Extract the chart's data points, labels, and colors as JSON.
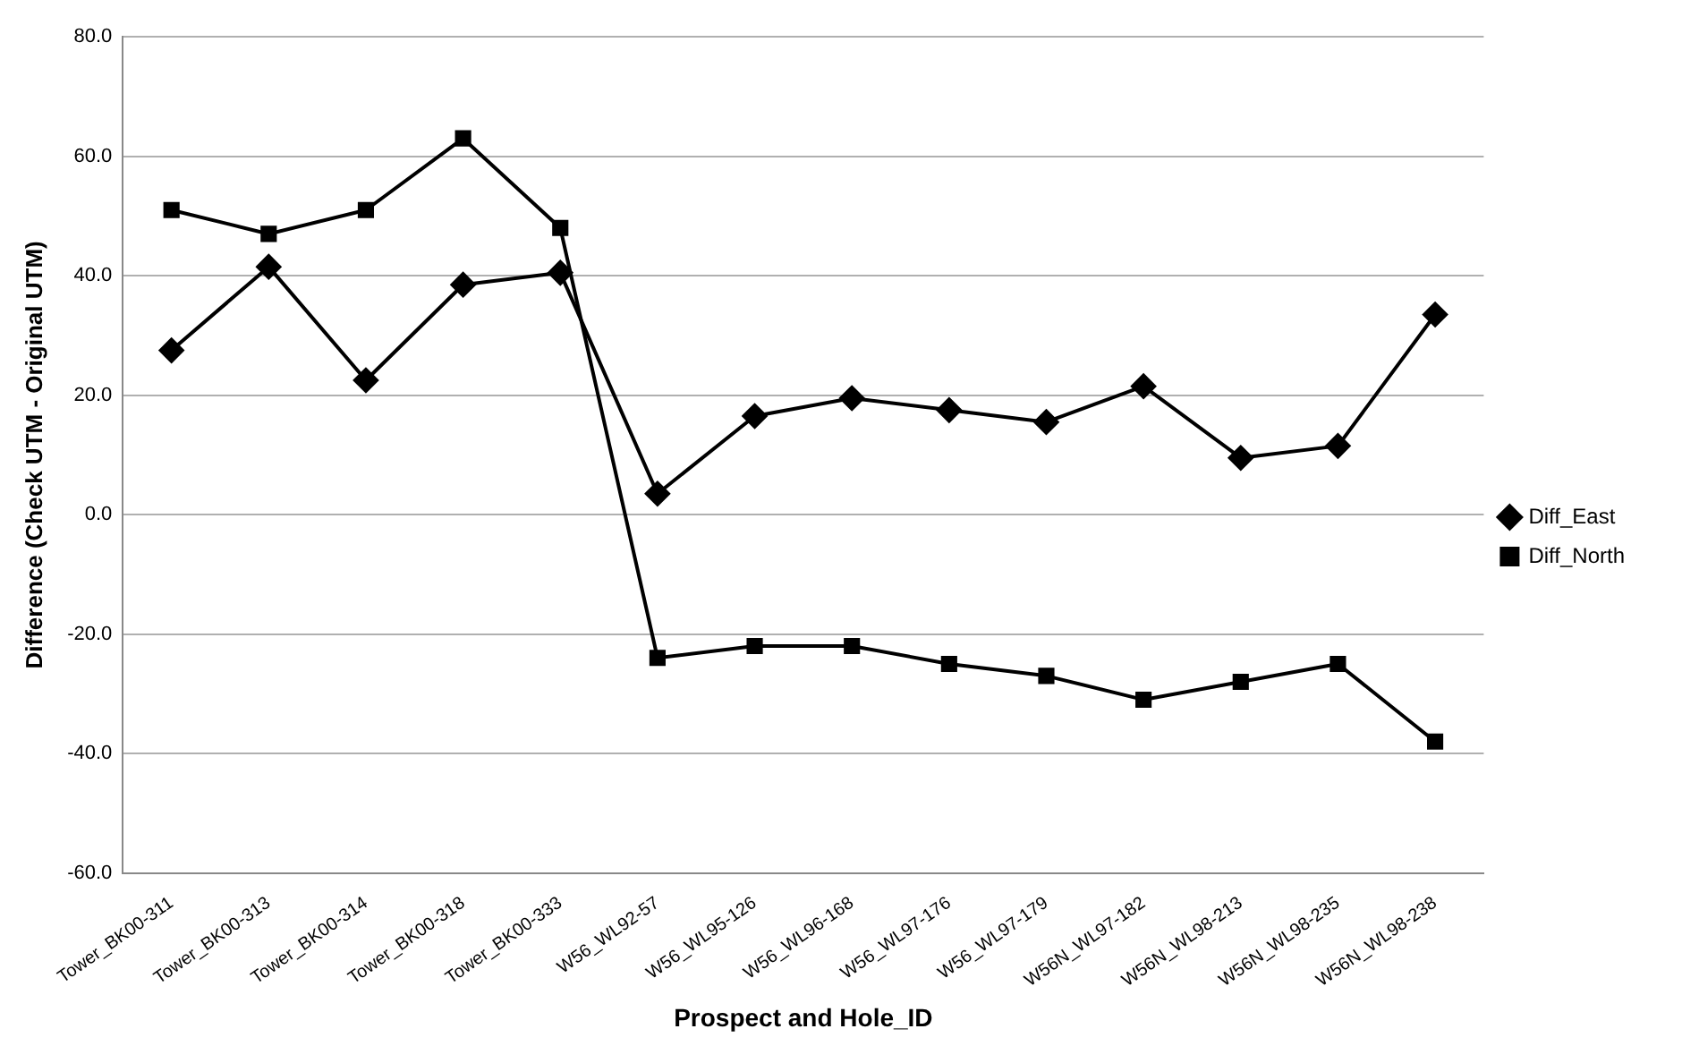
{
  "chart_data": {
    "type": "line",
    "xlabel": "Prospect and Hole_ID",
    "ylabel": "Difference (Check UTM - Original UTM)",
    "categories": [
      "Tower_BK00-311",
      "Tower_BK00-313",
      "Tower_BK00-314",
      "Tower_BK00-318",
      "Tower_BK00-333",
      "W56_WL92-57",
      "W56_WL95-126",
      "W56_WL96-168",
      "W56_WL97-176",
      "W56_WL97-179",
      "W56N_WL97-182",
      "W56N_WL98-213",
      "W56N_WL98-235",
      "W56N_WL98-238"
    ],
    "series": [
      {
        "name": "Diff_East",
        "color": "#000000",
        "marker": "diamond",
        "values": [
          27.5,
          41.5,
          22.5,
          38.5,
          40.5,
          3.5,
          16.5,
          19.5,
          17.5,
          15.5,
          21.5,
          9.5,
          11.5,
          33.5
        ]
      },
      {
        "name": "Diff_North",
        "color": "#000000",
        "marker": "square",
        "values": [
          51,
          47,
          51,
          63,
          48,
          -24,
          -22,
          -22,
          -25,
          -27,
          -31,
          -28,
          -25,
          -38
        ]
      }
    ],
    "ylim": [
      -60,
      80
    ],
    "yticks": [
      {
        "value": -60,
        "label": "-60.0"
      },
      {
        "value": -40,
        "label": "-40.0"
      },
      {
        "value": -20,
        "label": "-20.0"
      },
      {
        "value": 0,
        "label": "0.0"
      },
      {
        "value": 20,
        "label": "20.0"
      },
      {
        "value": 40,
        "label": "40.0"
      },
      {
        "value": 60,
        "label": "60.0"
      },
      {
        "value": 80,
        "label": "80.0"
      }
    ],
    "grid": "y",
    "legend": "right",
    "line_style": "solid"
  }
}
